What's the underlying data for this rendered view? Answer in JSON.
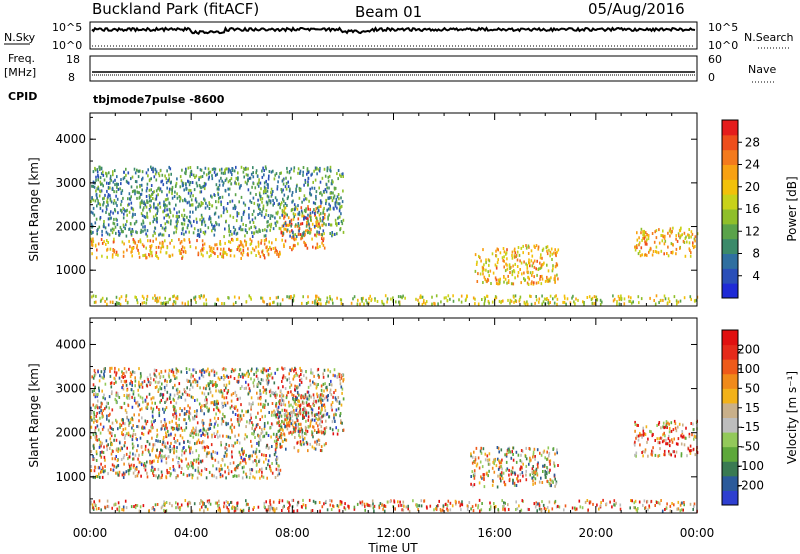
{
  "header": {
    "title": "Buckland Park (fitACF)",
    "beam": "Beam 01",
    "date": "05/Aug/2016"
  },
  "status": {
    "nsky_label": "N.Sky",
    "nsearch_label": "N.Search",
    "nsky_top": "10^5",
    "nsky_bottom": "10^0",
    "freq_label": "Freq.",
    "freq_unit": "[MHz]",
    "freq_top": "18",
    "freq_bottom": "8",
    "nave_label": "Nave",
    "nave_top": "60",
    "nave_bottom": "0",
    "cpid_label": "CPID",
    "cpid_value": "tbjmode7pulse  -8600"
  },
  "xaxis": {
    "title": "Time UT",
    "ticks": [
      "00:00",
      "04:00",
      "08:00",
      "12:00",
      "16:00",
      "20:00",
      "00:00"
    ]
  },
  "chart_data": [
    {
      "type": "heatmap",
      "ylabel": "Slant Range [km]",
      "yticks": [
        "1000",
        "2000",
        "3000",
        "4000"
      ],
      "ylim": [
        180,
        4600
      ],
      "xlim_hours": [
        0,
        24
      ],
      "colorbar": {
        "label": "Power [dB]",
        "ticks": [
          "4",
          "8",
          "12",
          "16",
          "20",
          "24",
          "28"
        ],
        "range": [
          0,
          30
        ],
        "colors": [
          "#1f2bd6",
          "#2a4fb8",
          "#2f6fa0",
          "#3b8a6a",
          "#5aa34a",
          "#8fbf2a",
          "#c8d21a",
          "#f2c10a",
          "#f8a112",
          "#f47a1c",
          "#ee4e1c",
          "#e51d1d"
        ]
      },
      "features": [
        {
          "t0": 0.0,
          "t1": 7.5,
          "r0": 1300,
          "r1": 1750,
          "level": 0.7
        },
        {
          "t0": 7.5,
          "t1": 9.3,
          "r0": 1500,
          "r1": 2500,
          "level": 0.75
        },
        {
          "t0": 0.0,
          "t1": 24.0,
          "r0": 250,
          "r1": 450,
          "level": 0.55
        },
        {
          "t0": 15.2,
          "t1": 18.5,
          "r0": 700,
          "r1": 1600,
          "level": 0.65
        },
        {
          "t0": 21.5,
          "t1": 24.0,
          "r0": 1350,
          "r1": 2000,
          "level": 0.65
        },
        {
          "t0": 0.0,
          "t1": 10.0,
          "r0": 1800,
          "r1": 3400,
          "level": 0.3
        }
      ]
    },
    {
      "type": "heatmap",
      "ylabel": "Slant Range [km]",
      "yticks": [
        "1000",
        "2000",
        "3000",
        "4000"
      ],
      "ylim": [
        180,
        4600
      ],
      "xlim_hours": [
        0,
        24
      ],
      "colorbar": {
        "label": "Velocity [m s⁻¹]",
        "ticks": [
          "200",
          "100",
          "50",
          "15",
          "-15",
          "-50",
          "-100",
          "-200"
        ],
        "range": [
          -250,
          250
        ],
        "colors": [
          "#2e3fd0",
          "#2b5a9a",
          "#3a7a52",
          "#5ea83a",
          "#93c95a",
          "#bdbdbd",
          "#c9b08a",
          "#f2b21a",
          "#f08a1a",
          "#ee5a1a",
          "#e52a1a",
          "#e01010"
        ]
      },
      "features": [
        {
          "t0": 0.0,
          "t1": 7.5,
          "r0": 1000,
          "r1": 2000,
          "level": 0.5
        },
        {
          "t0": 7.3,
          "t1": 9.3,
          "r0": 1600,
          "r1": 2900,
          "level": 0.55
        },
        {
          "t0": 0.0,
          "t1": 24.0,
          "r0": 250,
          "r1": 500,
          "level": 0.6
        },
        {
          "t0": 15.0,
          "t1": 18.5,
          "r0": 800,
          "r1": 1700,
          "level": 0.55
        },
        {
          "t0": 21.5,
          "t1": 24.0,
          "r0": 1500,
          "r1": 2300,
          "level": 0.75
        },
        {
          "t0": 0.0,
          "t1": 10.0,
          "r0": 2000,
          "r1": 3500,
          "level": 0.5
        }
      ]
    }
  ]
}
